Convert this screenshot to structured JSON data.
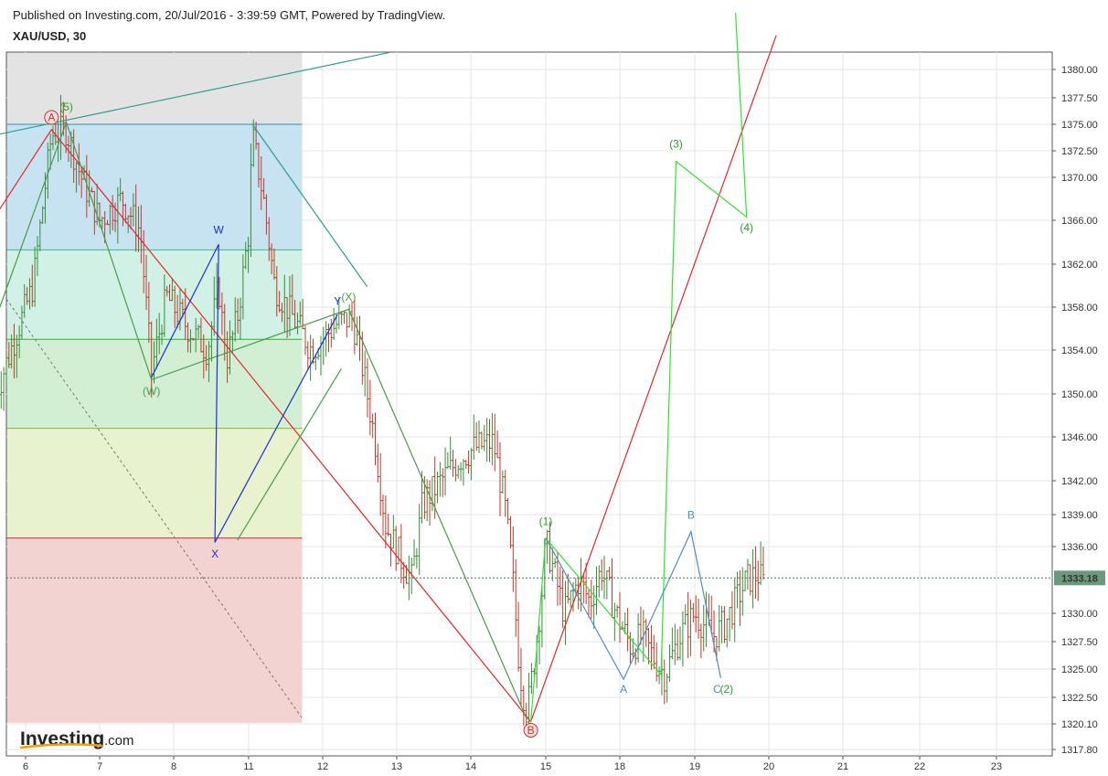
{
  "header": {
    "published": "Published on Investing.com, 20/Jul/2016 - 3:39:59 GMT, Powered by TradingView.",
    "symbol": "XAU/USD, 30"
  },
  "logo": {
    "brand": "Investing",
    "suffix": ".com"
  },
  "colors": {
    "candle_up": "#3a8a3a",
    "candle_down": "#c0392b",
    "grid": "#e6e6e6",
    "red_line": "#e8262a",
    "green_line": "#2ee52e",
    "dark_green": "#4a9a4a",
    "teal": "#2a9d8f",
    "blue": "#1f2ecf",
    "steel": "#4f8ec2",
    "price_tag": "#6a9a7a"
  },
  "chart_data": {
    "type": "candlestick",
    "title": "XAU/USD, 30",
    "xlabel": "",
    "ylabel": "",
    "x_ticks": [
      "6",
      "7",
      "8",
      "11",
      "12",
      "13",
      "14",
      "15",
      "18",
      "19",
      "20",
      "21",
      "22",
      "23"
    ],
    "y_ticks": [
      1380.0,
      1377.5,
      1375.0,
      1372.5,
      1370.0,
      1366.0,
      1362.0,
      1358.0,
      1354.0,
      1350.0,
      1346.0,
      1342.0,
      1339.0,
      1336.0,
      1330.0,
      1327.5,
      1325.0,
      1322.5,
      1320.1,
      1317.8
    ],
    "y_tick_labels": [
      "1380.00",
      "1377.50",
      "1375.00",
      "1372.50",
      "1370.00",
      "1366.00",
      "1362.00",
      "1358.00",
      "1354.00",
      "1350.00",
      "1346.00",
      "1342.00",
      "1339.00",
      "1336.00",
      "1330.00",
      "1327.50",
      "1325.00",
      "1322.50",
      "1320.10",
      "1317.80"
    ],
    "last_price": 1333.18,
    "last_price_label": "1333.18",
    "price_path": [
      [
        5.6,
        1350
      ],
      [
        6.1,
        1360
      ],
      [
        6.35,
        1374
      ],
      [
        6.55,
        1374.5
      ],
      [
        6.75,
        1370
      ],
      [
        7.0,
        1366
      ],
      [
        7.3,
        1368
      ],
      [
        7.55,
        1365
      ],
      [
        7.7,
        1352
      ],
      [
        7.9,
        1359
      ],
      [
        8.2,
        1356
      ],
      [
        8.45,
        1354
      ],
      [
        8.6,
        1360
      ],
      [
        8.7,
        1353
      ],
      [
        8.85,
        1357
      ],
      [
        9.0,
        1365
      ],
      [
        9.05,
        1374
      ],
      [
        9.2,
        1368
      ],
      [
        9.35,
        1360
      ],
      [
        9.6,
        1357
      ],
      [
        9.85,
        1354
      ],
      [
        10.2,
        1356.5
      ],
      [
        10.4,
        1357
      ],
      [
        10.55,
        1352
      ],
      [
        10.7,
        1346
      ],
      [
        10.85,
        1338
      ],
      [
        11.05,
        1335
      ],
      [
        11.2,
        1333
      ],
      [
        11.35,
        1340
      ],
      [
        11.6,
        1342
      ],
      [
        11.85,
        1344
      ],
      [
        12.05,
        1345
      ],
      [
        12.3,
        1345.5
      ],
      [
        12.45,
        1340
      ],
      [
        12.55,
        1334
      ],
      [
        12.65,
        1325
      ],
      [
        12.75,
        1321
      ],
      [
        12.85,
        1326
      ],
      [
        12.95,
        1332
      ],
      [
        13.0,
        1336.5
      ],
      [
        13.1,
        1334
      ],
      [
        13.25,
        1330
      ],
      [
        13.45,
        1333
      ],
      [
        13.6,
        1331
      ],
      [
        13.75,
        1334
      ],
      [
        13.95,
        1330
      ],
      [
        14.15,
        1327
      ],
      [
        14.3,
        1328
      ],
      [
        14.45,
        1326
      ],
      [
        14.6,
        1324.5
      ],
      [
        14.8,
        1328
      ],
      [
        15.0,
        1330
      ],
      [
        15.25,
        1328
      ],
      [
        15.4,
        1329
      ],
      [
        15.55,
        1331
      ],
      [
        15.7,
        1333
      ],
      [
        15.85,
        1333.5
      ],
      [
        15.95,
        1332.5
      ]
    ],
    "dates_note_omitted": true,
    "fib_zones": [
      {
        "from": 1375.0,
        "to": 1363.3,
        "color": "#c7e3f1"
      },
      {
        "from": 1363.3,
        "to": 1355.0,
        "color": "#d2f1e6"
      },
      {
        "from": 1355.0,
        "to": 1346.8,
        "color": "#d3efd3"
      },
      {
        "from": 1346.8,
        "to": 1336.8,
        "color": "#e8f2cf"
      },
      {
        "from": 1336.8,
        "to": 1320.2,
        "color": "#f3d2d2"
      }
    ],
    "fib_lines": [
      {
        "y": 1375.0,
        "color": "#2f8fb0"
      },
      {
        "y": 1363.3,
        "color": "#3ab98a"
      },
      {
        "y": 1355.0,
        "color": "#2ab52a"
      },
      {
        "y": 1346.8,
        "color": "#8bb82a"
      },
      {
        "y": 1336.8,
        "color": "#d03030"
      }
    ],
    "wave_lines": [
      {
        "name": "red_abc",
        "color": "#e8262a",
        "points": [
          [
            5.6,
            1366.5
          ],
          [
            6.35,
            1374.5
          ],
          [
            12.8,
            1320.3
          ],
          [
            16.1,
            1383
          ]
        ]
      },
      {
        "name": "green_12345",
        "color": "#2ee52e",
        "points": [
          [
            12.8,
            1320.3
          ],
          [
            13.0,
            1336.8
          ],
          [
            14.55,
            1324.5
          ],
          [
            14.75,
            1371.5
          ],
          [
            15.7,
            1366.3
          ],
          [
            15.55,
            1385
          ]
        ]
      },
      {
        "name": "dark_green_wxy",
        "color": "#4a9a4a",
        "points": [
          [
            6.55,
            1375.2
          ],
          [
            7.7,
            1351.3
          ],
          [
            10.35,
            1357.8
          ],
          [
            12.75,
            1320.5
          ]
        ]
      },
      {
        "name": "dark_green_start",
        "color": "#4a9a4a",
        "points": [
          [
            5.6,
            1357
          ],
          [
            6.55,
            1375.2
          ]
        ]
      },
      {
        "name": "dark_green_xbranch",
        "color": "#4a9a4a",
        "points": [
          [
            8.85,
            1336.6
          ],
          [
            10.25,
            1352.3
          ]
        ]
      },
      {
        "name": "blue_wxy",
        "color": "#1f2ecf",
        "points": [
          [
            7.7,
            1351.5
          ],
          [
            8.6,
            1363.8
          ],
          [
            8.55,
            1336.4
          ],
          [
            10.2,
            1357.3
          ]
        ]
      },
      {
        "name": "steel_abc",
        "color": "#4f8ec2",
        "points": [
          [
            13.0,
            1336.8
          ],
          [
            14.05,
            1324.1
          ],
          [
            14.95,
            1337.4
          ],
          [
            15.35,
            1324.2
          ]
        ]
      },
      {
        "name": "teal_channel",
        "color": "#2a9d8f",
        "points": [
          [
            9.05,
            1375.0
          ],
          [
            10.6,
            1359.9
          ]
        ]
      },
      {
        "name": "teal_upper",
        "color": "#2a9d8f",
        "points": [
          [
            5.6,
            1374
          ],
          [
            10.9,
            1381.5
          ]
        ]
      }
    ],
    "wave_labels": [
      {
        "text": "A",
        "x": 6.35,
        "y": 1375.3,
        "color": "#c0392b",
        "circled": true
      },
      {
        "text": "(5)",
        "x": 6.55,
        "y": 1376.3,
        "color": "#2aa02a"
      },
      {
        "text": "W",
        "x": 8.6,
        "y": 1364.8,
        "color": "#1f2ecf"
      },
      {
        "text": "X",
        "x": 8.55,
        "y": 1335.0,
        "color": "#1f2ecf"
      },
      {
        "text": "Y",
        "x": 10.2,
        "y": 1358.2,
        "color": "#1f2ecf"
      },
      {
        "text": "(X)",
        "x": 10.35,
        "y": 1358.6,
        "color": "#4a9a4a"
      },
      {
        "text": "(W)",
        "x": 7.7,
        "y": 1349.9,
        "color": "#4a9a4a"
      },
      {
        "text": "B",
        "x": 12.8,
        "y": 1319.2,
        "color": "#c0392b",
        "circled": true
      },
      {
        "text": "(1)",
        "x": 13.0,
        "y": 1338.0,
        "color": "#2aa02a"
      },
      {
        "text": "A",
        "x": 14.05,
        "y": 1322.9,
        "color": "#4f8ec2"
      },
      {
        "text": "B",
        "x": 14.95,
        "y": 1338.6,
        "color": "#4f8ec2"
      },
      {
        "text": "C",
        "x": 15.3,
        "y": 1322.9,
        "color": "#4f8ec2"
      },
      {
        "text": "(2)",
        "x": 15.43,
        "y": 1322.9,
        "color": "#2aa02a"
      },
      {
        "text": "(3)",
        "x": 14.75,
        "y": 1372.8,
        "color": "#2aa02a"
      },
      {
        "text": "(4)",
        "x": 15.7,
        "y": 1365.0,
        "color": "#2aa02a"
      }
    ],
    "grid": true,
    "legend": "none"
  }
}
